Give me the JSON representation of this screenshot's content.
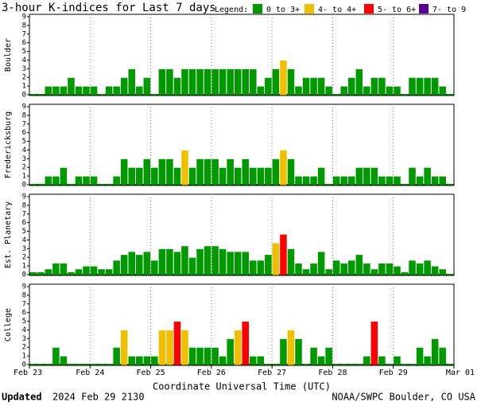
{
  "chart_data": {
    "type": "bar",
    "title": "3-hour K-indices for Last 7 days",
    "legend_title": "Legend:",
    "legend": [
      {
        "label": "0 to 3+",
        "color": "#009a00"
      },
      {
        "label": "4- to 4+",
        "color": "#f0c000"
      },
      {
        "label": "5- to 6+",
        "color": "#ff0000"
      },
      {
        "label": "7- to 9",
        "color": "#5a0094"
      }
    ],
    "xticks": [
      "Feb 23",
      "Feb 24",
      "Feb 25",
      "Feb 26",
      "Feb 27",
      "Feb 28",
      "Feb 29",
      "Mar 01"
    ],
    "xlabel": "Coordinate Universal Time (UTC)",
    "ylim": [
      0,
      9
    ],
    "yticks": [
      0,
      1,
      2,
      3,
      4,
      5,
      6,
      7,
      8,
      9
    ],
    "panels": [
      {
        "name": "Boulder",
        "values": [
          0,
          0,
          1,
          1,
          1,
          2,
          1,
          1,
          1,
          0,
          1,
          1,
          2,
          3,
          1,
          2,
          0,
          3,
          3,
          2,
          3,
          3,
          3,
          3,
          3,
          3,
          3,
          3,
          3,
          3,
          1,
          2,
          3,
          4,
          3,
          1,
          2,
          2,
          2,
          1,
          0,
          1,
          2,
          3,
          1,
          2,
          2,
          1,
          1,
          0,
          2,
          2,
          2,
          2,
          1,
          0
        ]
      },
      {
        "name": "Fredericksburg",
        "values": [
          0,
          0,
          1,
          1,
          2,
          0,
          1,
          1,
          1,
          0,
          0,
          1,
          3,
          2,
          2,
          3,
          2,
          3,
          3,
          2,
          4,
          2,
          3,
          3,
          3,
          2,
          3,
          2,
          3,
          2,
          2,
          2,
          3,
          4,
          3,
          1,
          1,
          1,
          2,
          0,
          1,
          1,
          1,
          2,
          2,
          2,
          1,
          1,
          1,
          0,
          2,
          1,
          2,
          1,
          1,
          0
        ]
      },
      {
        "name": "Est. Planetary",
        "values": [
          0.33,
          0.33,
          0.67,
          1.33,
          1.33,
          0.33,
          0.67,
          1,
          1,
          0.67,
          0.67,
          1.67,
          2.33,
          2.67,
          2.33,
          2.67,
          1.67,
          3,
          3,
          2.67,
          3.33,
          2,
          3,
          3.33,
          3.33,
          3,
          2.67,
          2.67,
          2.67,
          1.67,
          1.67,
          2.33,
          3.67,
          4.67,
          3,
          1.33,
          0.67,
          1.33,
          2.67,
          0.67,
          1.67,
          1.33,
          1.67,
          2.33,
          1.33,
          0.67,
          1.33,
          1.33,
          1,
          0.33,
          1.67,
          1.33,
          1.67,
          1,
          0.67,
          0
        ]
      },
      {
        "name": "College",
        "values": [
          0,
          0,
          0,
          2,
          1,
          0,
          0,
          0,
          0,
          0,
          0,
          2,
          4,
          1,
          1,
          1,
          1,
          4,
          4,
          5,
          4,
          2,
          2,
          2,
          2,
          1,
          3,
          4,
          5,
          1,
          1,
          0,
          0,
          3,
          4,
          3,
          0,
          2,
          1,
          2,
          0,
          0,
          0,
          0,
          1,
          5,
          1,
          0,
          1,
          0,
          0,
          2,
          1,
          3,
          2,
          0
        ]
      }
    ]
  },
  "footer": {
    "updated_label": "Updated",
    "updated": "2024 Feb 29 2130",
    "credit": "NOAA/SWPC Boulder, CO USA"
  }
}
